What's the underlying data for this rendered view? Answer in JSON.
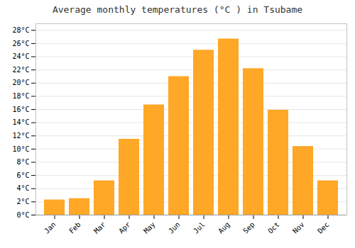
{
  "chart_data": {
    "type": "bar",
    "title": "Average monthly temperatures (°C ) in Tsubame",
    "categories": [
      "Jan",
      "Feb",
      "Mar",
      "Apr",
      "May",
      "Jun",
      "Jul",
      "Aug",
      "Sep",
      "Oct",
      "Nov",
      "Dec"
    ],
    "values": [
      2.3,
      2.5,
      5.2,
      11.5,
      16.7,
      21.0,
      25.0,
      26.7,
      22.2,
      15.9,
      10.4,
      5.2
    ],
    "color": "#FFA726",
    "ylim": [
      0,
      29
    ],
    "yticks": [
      {
        "value": 0,
        "label": "0°C"
      },
      {
        "value": 2,
        "label": "2°C"
      },
      {
        "value": 4,
        "label": "4°C"
      },
      {
        "value": 6,
        "label": "6°C"
      },
      {
        "value": 8,
        "label": "8°C"
      },
      {
        "value": 10,
        "label": "10°C"
      },
      {
        "value": 12,
        "label": "12°C"
      },
      {
        "value": 14,
        "label": "14°C"
      },
      {
        "value": 16,
        "label": "16°C"
      },
      {
        "value": 18,
        "label": "18°C"
      },
      {
        "value": 20,
        "label": "20°C"
      },
      {
        "value": 22,
        "label": "22°C"
      },
      {
        "value": 24,
        "label": "24°C"
      },
      {
        "value": 26,
        "label": "26°C"
      },
      {
        "value": 28,
        "label": "28°C"
      }
    ],
    "grid": true
  }
}
